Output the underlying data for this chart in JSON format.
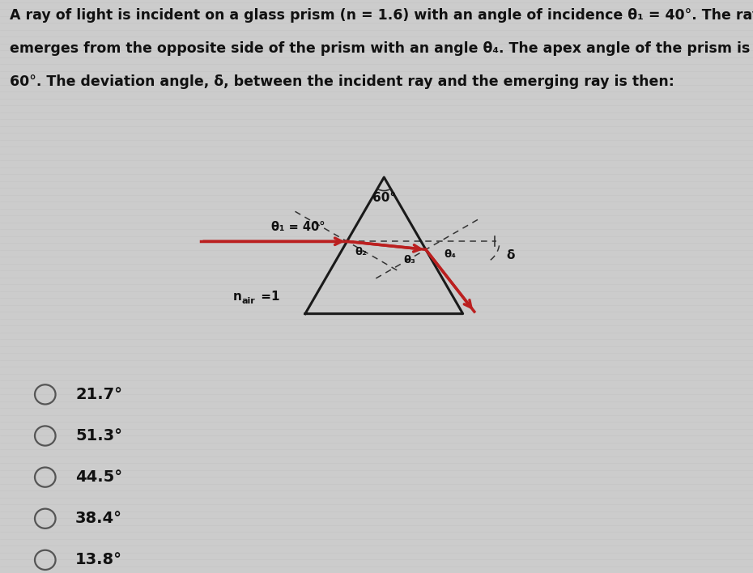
{
  "bg_color": "#cccccc",
  "title_text_line1": "A ray of light is incident on a glass prism (n = 1.6) with an angle of incidence θ₁ = 40°. The ray",
  "title_text_line2": "emerges from the opposite side of the prism with an angle θ₄. The apex angle of the prism is",
  "title_text_line3": "60°. The deviation angle, δ, between the incident ray and the emerging ray is then:",
  "options": [
    "21.7°",
    "51.3°",
    "44.5°",
    "38.4°",
    "13.8°"
  ],
  "prism_color": "#1a1a1a",
  "ray_color": "#bb2020",
  "dashed_color": "#333333",
  "theta1_label": "θ₁ = 40°",
  "theta2_label": "θ₂",
  "theta3_label": "θ₃",
  "theta4_label": "θ₄",
  "delta_label": "δ",
  "n_label": "n",
  "n_sub": "air",
  "n_val": " =1",
  "apex_label": "60°"
}
